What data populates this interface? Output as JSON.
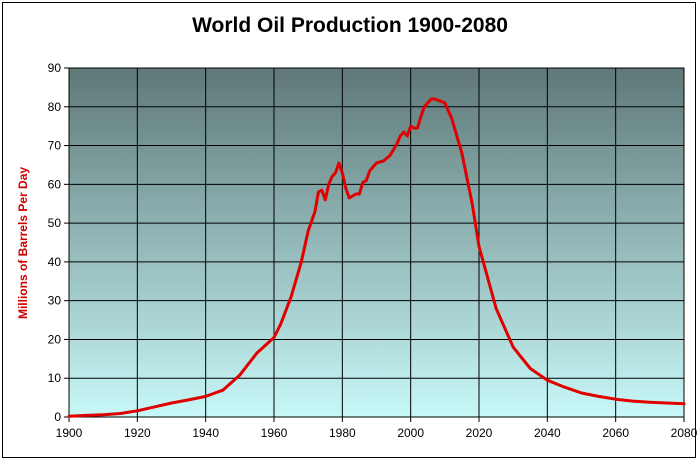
{
  "chart_data": {
    "type": "line",
    "title": "World Oil Production 1900-2080",
    "xlabel": "",
    "ylabel": "Millions of Barrels Per Day",
    "xlim": [
      1900,
      2080
    ],
    "ylim": [
      0,
      90
    ],
    "x_ticks": [
      1900,
      1920,
      1940,
      1960,
      1980,
      2000,
      2020,
      2040,
      2060,
      2080
    ],
    "y_ticks": [
      0,
      10,
      20,
      30,
      40,
      50,
      60,
      70,
      80,
      90
    ],
    "grid": true,
    "legend": "none",
    "colors": {
      "line": "#e00000",
      "plot_top": "#5f7878",
      "plot_bottom": "#c8f8f8",
      "grid": "#000000",
      "axis_title": "#cc0000"
    },
    "series": [
      {
        "x": [
          1900,
          1905,
          1910,
          1915,
          1920,
          1925,
          1930,
          1935,
          1940,
          1945,
          1950,
          1955,
          1960,
          1962,
          1965,
          1968,
          1970,
          1972,
          1973,
          1974,
          1975,
          1976,
          1977,
          1978,
          1979,
          1980,
          1981,
          1982,
          1983,
          1984,
          1985,
          1986,
          1987,
          1988,
          1989,
          1990,
          1992,
          1994,
          1996,
          1997,
          1998,
          1999,
          2000,
          2001,
          2002,
          2003,
          2004,
          2005,
          2006,
          2007,
          2008,
          2010,
          2012,
          2015,
          2018,
          2020,
          2025,
          2030,
          2035,
          2040,
          2045,
          2050,
          2055,
          2060,
          2065,
          2070,
          2075,
          2080
        ],
        "values": [
          0.2,
          0.4,
          0.6,
          0.9,
          1.6,
          2.6,
          3.6,
          4.4,
          5.3,
          6.9,
          10.8,
          16.5,
          20.5,
          24,
          31,
          40,
          48,
          53,
          58,
          58.5,
          56,
          60,
          62,
          63,
          65.5,
          63,
          59,
          56.5,
          57,
          57.5,
          57.5,
          60.5,
          61,
          63.5,
          64.5,
          65.5,
          66,
          67.5,
          70.5,
          72.5,
          73.5,
          72.5,
          75,
          74.5,
          74.5,
          77.5,
          80,
          81,
          82,
          82,
          81.7,
          81,
          77,
          68,
          55,
          44,
          28,
          18,
          12.5,
          9.5,
          7.7,
          6.2,
          5.3,
          4.6,
          4.1,
          3.8,
          3.6,
          3.4
        ]
      }
    ]
  }
}
